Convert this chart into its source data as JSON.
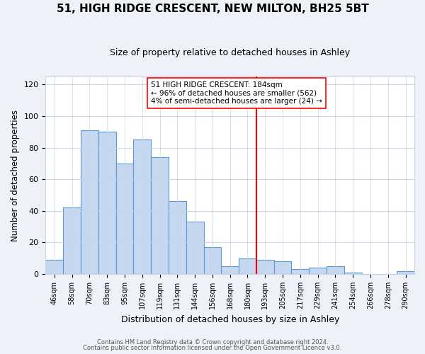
{
  "title": "51, HIGH RIDGE CRESCENT, NEW MILTON, BH25 5BT",
  "subtitle": "Size of property relative to detached houses in Ashley",
  "xlabel": "Distribution of detached houses by size in Ashley",
  "ylabel": "Number of detached properties",
  "bar_labels": [
    "46sqm",
    "58sqm",
    "70sqm",
    "83sqm",
    "95sqm",
    "107sqm",
    "119sqm",
    "131sqm",
    "144sqm",
    "156sqm",
    "168sqm",
    "180sqm",
    "193sqm",
    "205sqm",
    "217sqm",
    "229sqm",
    "241sqm",
    "254sqm",
    "266sqm",
    "278sqm",
    "290sqm"
  ],
  "bar_values": [
    9,
    42,
    91,
    90,
    70,
    85,
    74,
    46,
    33,
    17,
    5,
    10,
    9,
    8,
    3,
    4,
    5,
    1,
    0,
    0,
    2
  ],
  "bar_color": "#c5d8f0",
  "bar_edge_color": "#5b9bd5",
  "vline_x": 11.5,
  "vline_color": "red",
  "annotation_text": "51 HIGH RIDGE CRESCENT: 184sqm\n← 96% of detached houses are smaller (562)\n4% of semi-detached houses are larger (24) →",
  "ylim": [
    0,
    125
  ],
  "yticks": [
    0,
    20,
    40,
    60,
    80,
    100,
    120
  ],
  "footer1": "Contains HM Land Registry data © Crown copyright and database right 2024.",
  "footer2": "Contains public sector information licensed under the Open Government Licence v3.0.",
  "bg_color": "#eef2f8",
  "plot_bg_color": "#ffffff",
  "grid_color": "#c8d4e8"
}
